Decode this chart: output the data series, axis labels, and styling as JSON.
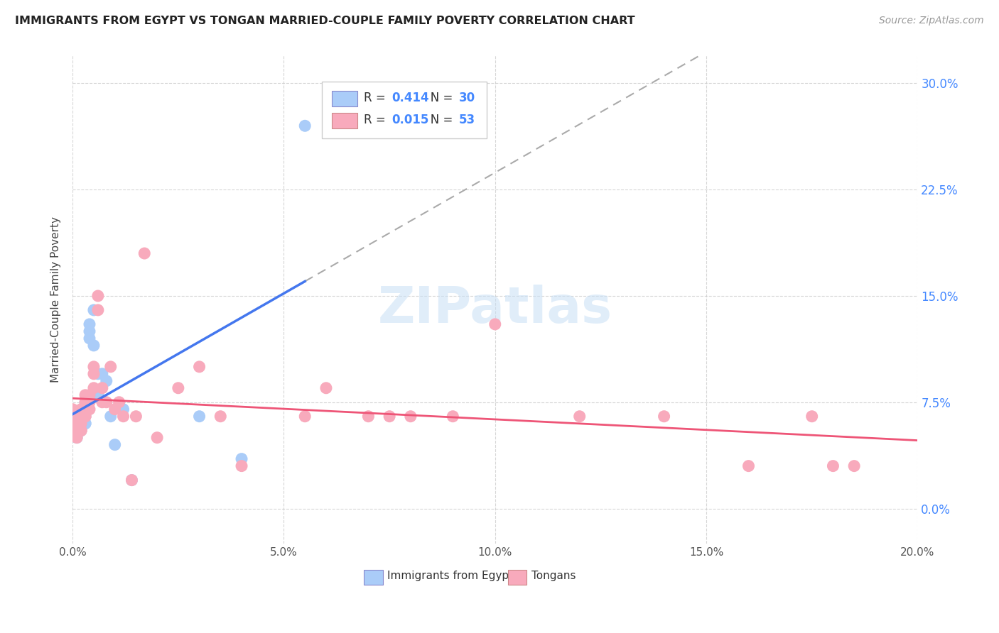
{
  "title": "IMMIGRANTS FROM EGYPT VS TONGAN MARRIED-COUPLE FAMILY POVERTY CORRELATION CHART",
  "source": "Source: ZipAtlas.com",
  "ylabel": "Married-Couple Family Poverty",
  "legend_label1": "Immigrants from Egypt",
  "legend_label2": "Tongans",
  "r1": 0.414,
  "n1": 30,
  "r2": 0.015,
  "n2": 53,
  "color1": "#aaccf8",
  "color2": "#f8aabc",
  "line1_color": "#4477ee",
  "line2_color": "#ee5577",
  "dash_color": "#aaaaaa",
  "xmin": 0.0,
  "xmax": 0.2,
  "ymin": -0.025,
  "ymax": 0.32,
  "egypt_x": [
    0.0,
    0.001,
    0.001,
    0.001,
    0.001,
    0.002,
    0.002,
    0.002,
    0.002,
    0.003,
    0.003,
    0.003,
    0.003,
    0.003,
    0.004,
    0.004,
    0.004,
    0.005,
    0.005,
    0.006,
    0.006,
    0.007,
    0.008,
    0.009,
    0.01,
    0.012,
    0.014,
    0.03,
    0.04,
    0.055
  ],
  "egypt_y": [
    0.055,
    0.065,
    0.06,
    0.055,
    0.05,
    0.065,
    0.06,
    0.06,
    0.055,
    0.07,
    0.06,
    0.065,
    0.075,
    0.06,
    0.13,
    0.125,
    0.12,
    0.14,
    0.115,
    0.095,
    0.08,
    0.095,
    0.09,
    0.065,
    0.045,
    0.07,
    0.02,
    0.065,
    0.035,
    0.27
  ],
  "tongan_x": [
    0.0,
    0.001,
    0.001,
    0.001,
    0.001,
    0.001,
    0.002,
    0.002,
    0.002,
    0.002,
    0.002,
    0.003,
    0.003,
    0.003,
    0.003,
    0.003,
    0.003,
    0.004,
    0.004,
    0.004,
    0.005,
    0.005,
    0.005,
    0.006,
    0.006,
    0.007,
    0.007,
    0.008,
    0.009,
    0.01,
    0.011,
    0.012,
    0.014,
    0.015,
    0.017,
    0.02,
    0.025,
    0.03,
    0.035,
    0.04,
    0.055,
    0.06,
    0.07,
    0.075,
    0.08,
    0.09,
    0.1,
    0.12,
    0.14,
    0.16,
    0.175,
    0.18,
    0.185
  ],
  "tongan_y": [
    0.07,
    0.065,
    0.06,
    0.06,
    0.055,
    0.05,
    0.07,
    0.065,
    0.06,
    0.055,
    0.055,
    0.08,
    0.075,
    0.07,
    0.07,
    0.065,
    0.065,
    0.08,
    0.075,
    0.07,
    0.1,
    0.095,
    0.085,
    0.14,
    0.15,
    0.085,
    0.075,
    0.075,
    0.1,
    0.07,
    0.075,
    0.065,
    0.02,
    0.065,
    0.18,
    0.05,
    0.085,
    0.1,
    0.065,
    0.03,
    0.065,
    0.085,
    0.065,
    0.065,
    0.065,
    0.065,
    0.13,
    0.065,
    0.065,
    0.03,
    0.065,
    0.03,
    0.03
  ]
}
